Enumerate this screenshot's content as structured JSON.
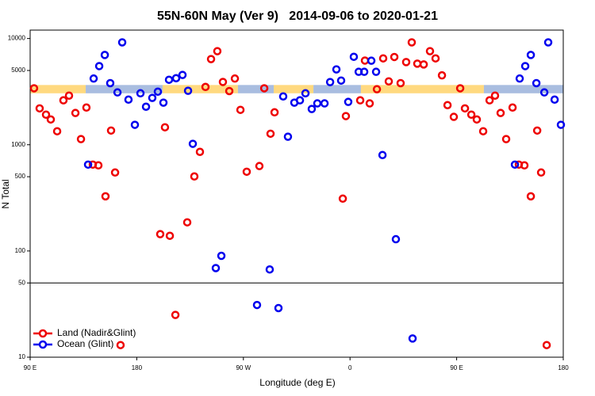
{
  "chart_data": {
    "type": "scatter",
    "title": "55N-60N May (Ver 9)   2014-09-06 to 2020-01-21",
    "x_label": "Longitude (deg E)",
    "y_label": "N Total",
    "log_y": true,
    "legend": "lower left",
    "xlim": [
      90,
      540
    ],
    "xticks": [
      {
        "value": 90,
        "label": "90 E"
      },
      {
        "value": 180,
        "label": "180"
      },
      {
        "value": 270,
        "label": "90 W"
      },
      {
        "value": 360,
        "label": "0"
      },
      {
        "value": 450,
        "label": "90 E"
      },
      {
        "value": 540,
        "label": "180"
      }
    ],
    "ylim": [
      10,
      12000
    ],
    "yticks": [
      10,
      50,
      100,
      500,
      1000,
      5000,
      10000
    ],
    "panel_divider": 50,
    "surface_band": {
      "range": [
        3050,
        3650
      ],
      "segments": [
        {
          "from": 90,
          "to": 136.9,
          "color": "#ffd97f"
        },
        {
          "from": 136.9,
          "to": 201.8,
          "color": "#a9bde0"
        },
        {
          "from": 201.8,
          "to": 265.4,
          "color": "#ffd97f"
        },
        {
          "from": 265.4,
          "to": 295.6,
          "color": "#a9bde0"
        },
        {
          "from": 295.6,
          "to": 329.1,
          "color": "#ffd97f"
        },
        {
          "from": 329.1,
          "to": 369.2,
          "color": "#a9bde0"
        },
        {
          "from": 369.2,
          "to": 473,
          "color": "#ffd97f"
        },
        {
          "from": 473,
          "to": 540,
          "color": "#a9bde0"
        }
      ]
    },
    "series": [
      {
        "name": "Land (Nadir&Glint)",
        "color": "#ee0000",
        "x": [
          93.3,
          98,
          103.4,
          107.4,
          112.8,
          118.1,
          122.8,
          128.2,
          132.9,
          137.5,
          142.9,
          147.6,
          153.6,
          158.3,
          161.7,
          166.3,
          199.8,
          203.8,
          207.9,
          212.6,
          222.6,
          228.6,
          233.3,
          238,
          242.7,
          248,
          252.7,
          258.1,
          262.8,
          267.5,
          272.8,
          283.5,
          287.6,
          292.9,
          296.3,
          353.9,
          356.5,
          368.6,
          372.6,
          376.6,
          382.7,
          388,
          392.7,
          397.4,
          402.7,
          407.4,
          412.1,
          416.8,
          422.2,
          427.5,
          432.2,
          437.6,
          442.3,
          447.6,
          453,
          457,
          462.4,
          467,
          472.4,
          477.8,
          482.4,
          487.1,
          491.8,
          497.2,
          502.5,
          507.2,
          512.6,
          518,
          521.3,
          526
        ],
        "values": [
          3400,
          2200,
          1920,
          1730,
          1340,
          2620,
          2900,
          1990,
          1130,
          2240,
          650,
          640,
          327,
          1360,
          548,
          13,
          144,
          1460,
          139,
          25,
          186,
          503,
          857,
          3500,
          6400,
          7600,
          3900,
          3200,
          4200,
          2130,
          557,
          630,
          3400,
          1270,
          2020,
          311,
          1860,
          2620,
          6200,
          2450,
          3330,
          6500,
          3950,
          6700,
          3800,
          6000,
          9200,
          5800,
          5700,
          7600,
          6500,
          4500,
          2360,
          1830,
          3400,
          2200,
          1920,
          1730,
          1340,
          2620,
          2900,
          1990,
          1130,
          2240,
          650,
          640,
          327,
          1360,
          548,
          13
        ]
      },
      {
        "name": "Ocean (Glint)",
        "color": "#0000ee",
        "x": [
          138.9,
          143.6,
          148.3,
          153,
          157.6,
          163.7,
          167.7,
          173,
          178.4,
          183.1,
          187.8,
          193.1,
          197.8,
          202.5,
          207.2,
          213.2,
          218.6,
          223.3,
          227.3,
          246.7,
          251.4,
          281.5,
          292.2,
          299.6,
          303.6,
          307.6,
          313,
          317.7,
          322.4,
          327.7,
          332.4,
          338.5,
          343.2,
          348.5,
          352.5,
          358.5,
          363.2,
          367.3,
          372,
          378,
          382,
          387.4,
          398.7,
          412.8,
          499.2,
          503.2,
          507.9,
          512.6,
          517.3,
          524,
          527.3,
          532.7,
          538
        ],
        "values": [
          650,
          4200,
          5500,
          7000,
          3800,
          3110,
          9200,
          2660,
          1540,
          3050,
          2280,
          2760,
          3160,
          2490,
          4090,
          4230,
          4540,
          3220,
          1020,
          69,
          90,
          31,
          67,
          29,
          2850,
          1190,
          2490,
          2620,
          3050,
          2170,
          2450,
          2450,
          3890,
          5120,
          4020,
          2530,
          6730,
          4860,
          4860,
          6180,
          4860,
          800,
          129,
          15,
          650,
          4200,
          5500,
          7000,
          3800,
          3110,
          9200,
          2660,
          1540
        ]
      }
    ]
  }
}
